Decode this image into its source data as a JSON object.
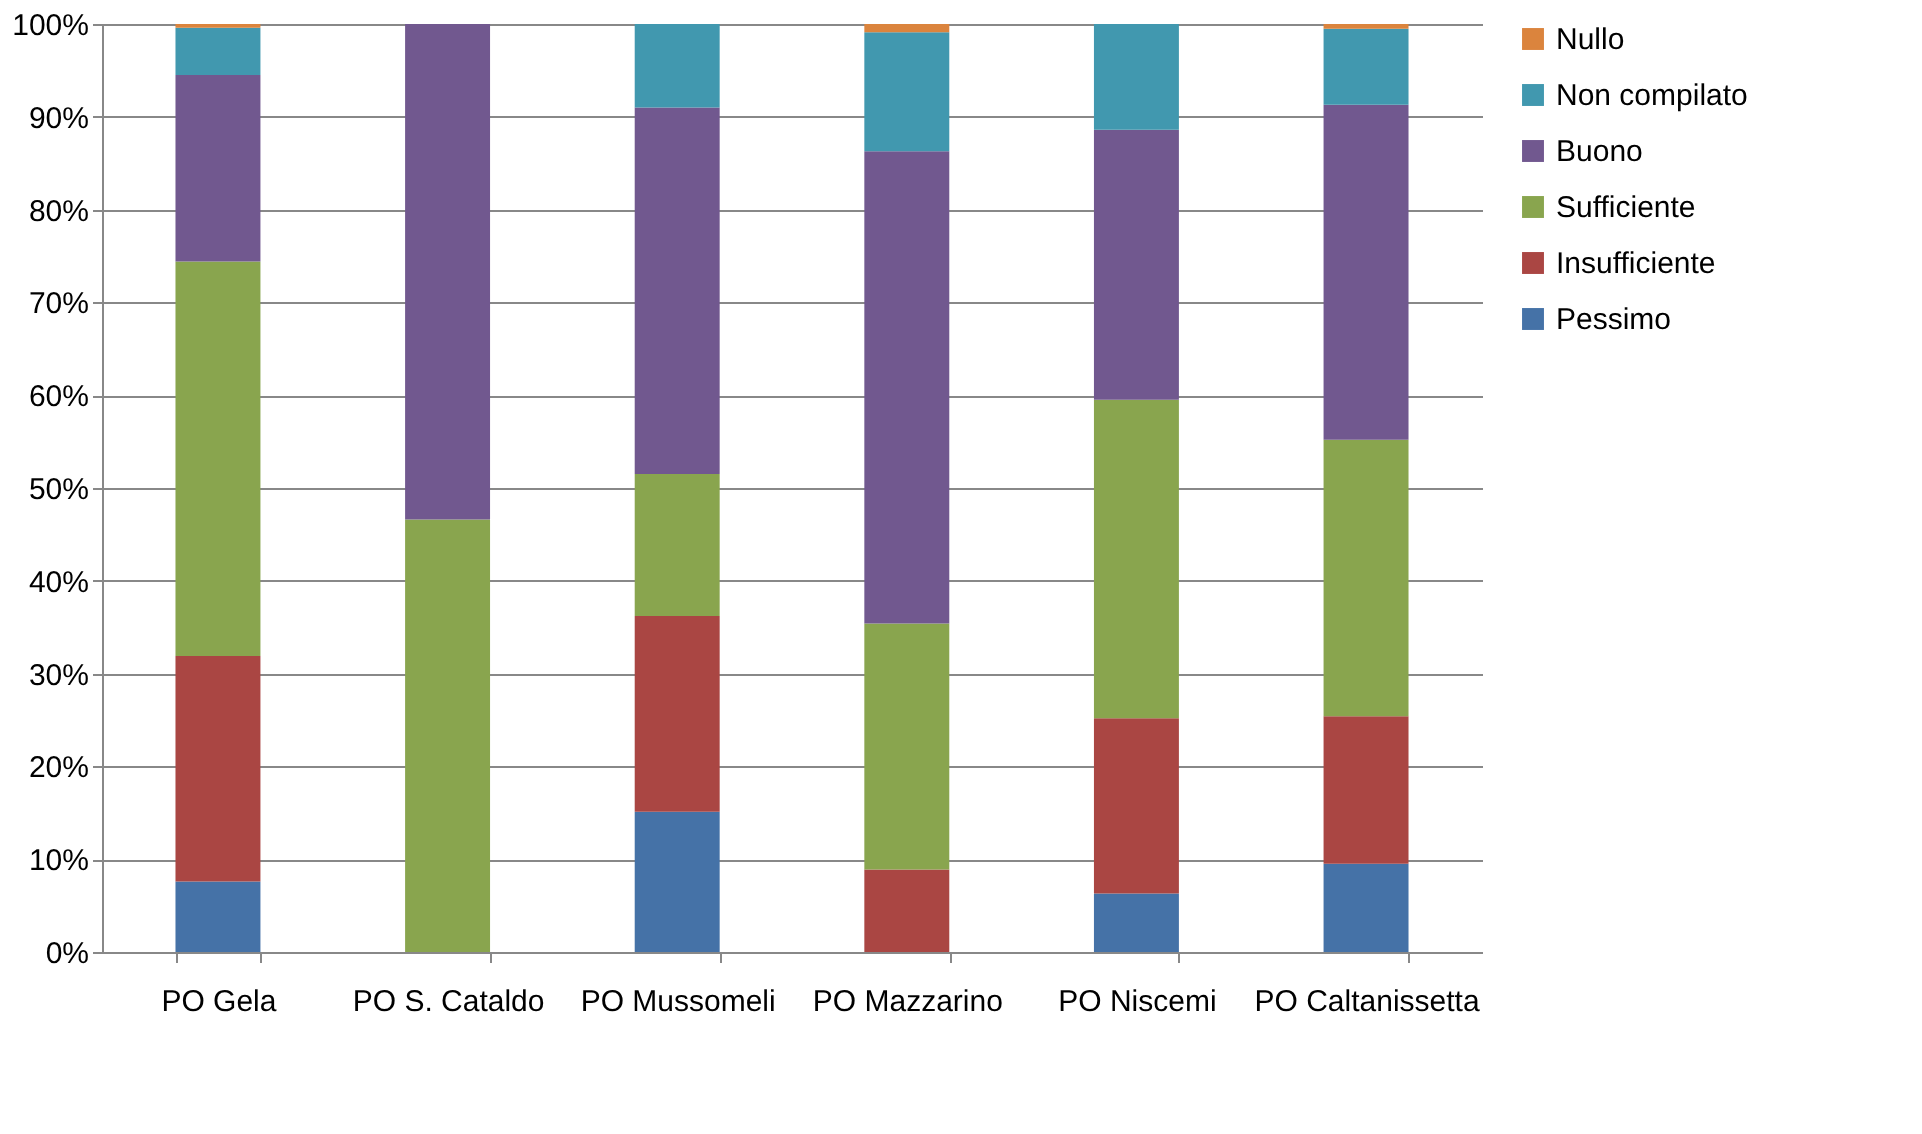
{
  "chart_data": {
    "type": "bar",
    "stacked": true,
    "categories": [
      "PO Gela",
      "PO S. Cataldo",
      "PO Mussomeli",
      "PO Mazzarino",
      "PO Niscemi",
      "PO Caltanissetta"
    ],
    "series": [
      {
        "name": "Pessimo",
        "color": "#4572a7",
        "values": [
          7.6,
          null,
          15.1,
          null,
          6.3,
          9.5
        ]
      },
      {
        "name": "Insufficiente",
        "color": "#aa4643",
        "values": [
          24.3,
          null,
          21.1,
          8.9,
          18.9,
          15.9
        ]
      },
      {
        "name": "Sufficiente",
        "color": "#89a54e",
        "values": [
          42.5,
          46.6,
          15.3,
          26.5,
          34.3,
          29.8
        ]
      },
      {
        "name": "Buono",
        "color": "#71588f",
        "values": [
          20.1,
          53.4,
          39.5,
          50.9,
          29.1,
          36.1
        ]
      },
      {
        "name": "Non compilato",
        "color": "#4198af",
        "values": [
          5.1,
          null,
          9.0,
          12.8,
          11.4,
          8.2
        ]
      },
      {
        "name": "Nullo",
        "color": "#db843d",
        "values": [
          0.4,
          null,
          null,
          0.9,
          null,
          0.5
        ]
      }
    ],
    "ylim": [
      0,
      100
    ],
    "yticks": [
      {
        "value": 0,
        "label": "0%"
      },
      {
        "value": 10,
        "label": "10%"
      },
      {
        "value": 20,
        "label": "20%"
      },
      {
        "value": 30,
        "label": "30%"
      },
      {
        "value": 40,
        "label": "40%"
      },
      {
        "value": 50,
        "label": "50%"
      },
      {
        "value": 60,
        "label": "60%"
      },
      {
        "value": 70,
        "label": "70%"
      },
      {
        "value": 80,
        "label": "80%"
      },
      {
        "value": 90,
        "label": "90%"
      },
      {
        "value": 100,
        "label": "100%"
      }
    ],
    "grid": "y",
    "legend": "right"
  }
}
